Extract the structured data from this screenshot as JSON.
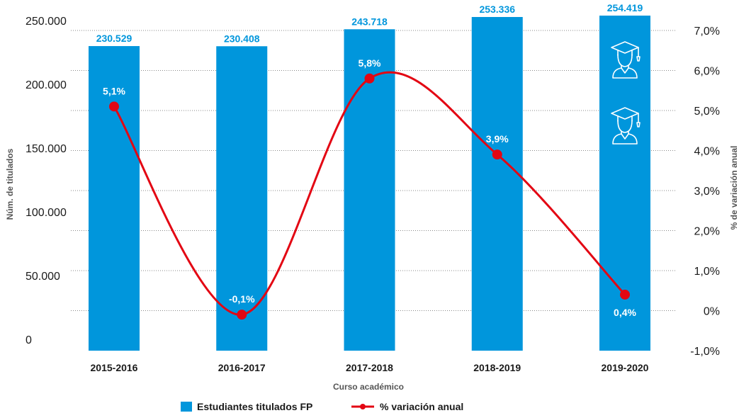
{
  "chart_data": {
    "type": "bar",
    "categories": [
      "2015-2016",
      "2016-2017",
      "2017-2018",
      "2018-2019",
      "2019-2020"
    ],
    "series": [
      {
        "name": "Estudiantes titulados FP",
        "type": "bar",
        "axis": "left",
        "values": [
          230529,
          230408,
          243718,
          253336,
          254419
        ],
        "labels": [
          "230.529",
          "230.408",
          "243.718",
          "253.336",
          "254.419"
        ],
        "color": "#0096dc"
      },
      {
        "name": "% variación anual",
        "type": "line",
        "axis": "right",
        "values": [
          5.1,
          -0.1,
          5.8,
          3.9,
          0.4
        ],
        "labels": [
          "5,1%",
          "-0,1%",
          "5,8%",
          "3,9%",
          "0,4%"
        ],
        "color": "#e30613"
      }
    ],
    "xlabel": "Curso académico",
    "ylabel": "Núm. de titulados",
    "ylabel_right": "% de variación anual",
    "ylim": [
      0,
      250000
    ],
    "ylim_right": [
      -1,
      7
    ],
    "yticks": [
      "0",
      "50.000",
      "100.000",
      "150.000",
      "200.000",
      "250.000"
    ],
    "yticks_right": [
      "-1,0%",
      "0%",
      "1,0%",
      "2,0%",
      "3,0%",
      "4,0%",
      "5,0%",
      "6,0%",
      "7,0%"
    ],
    "grid": true,
    "legend_position": "bottom",
    "icons": [
      "graduate-icon",
      "graduate-icon"
    ]
  }
}
